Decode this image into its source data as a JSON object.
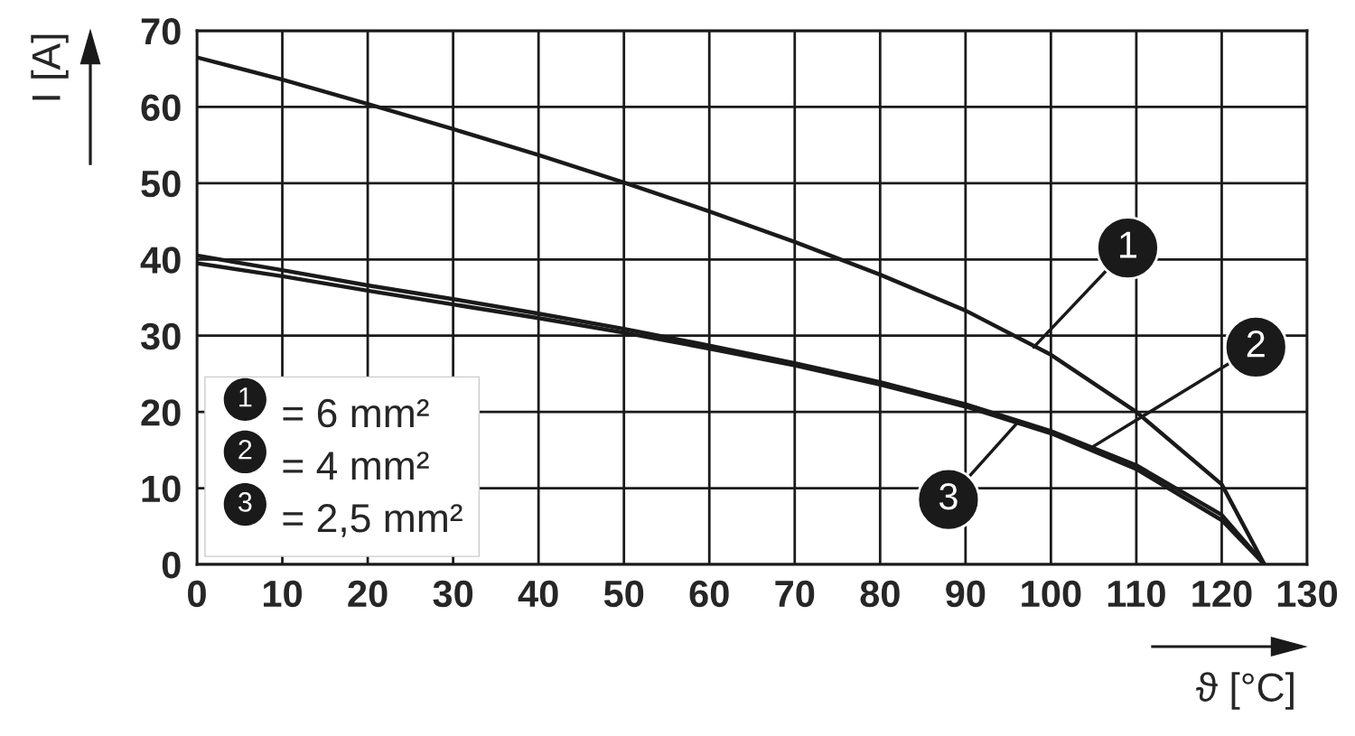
{
  "chart_data": {
    "type": "line",
    "xlabel": "ϑ [°C]",
    "ylabel": "I [A]",
    "x": [
      0,
      10,
      20,
      30,
      40,
      50,
      60,
      70,
      80,
      90,
      100,
      110,
      120,
      125
    ],
    "series": [
      {
        "name": "= 6 mm²",
        "color": "#1a1a1a",
        "values": [
          66.5,
          63.6,
          60.4,
          57.1,
          53.7,
          50.1,
          46.3,
          42.3,
          38.0,
          33.3,
          27.5,
          20.0,
          10.5,
          0
        ]
      },
      {
        "name": "= 4 mm²",
        "color": "#1a1a1a",
        "values": [
          40.5,
          38.6,
          36.6,
          34.8,
          32.9,
          30.9,
          28.7,
          26.4,
          23.9,
          21.0,
          17.5,
          13.0,
          6.5,
          0
        ]
      },
      {
        "name": "= 2,5 mm²",
        "color": "#1a1a1a",
        "values": [
          39.5,
          37.8,
          35.9,
          34.1,
          32.3,
          30.4,
          28.3,
          26.1,
          23.6,
          20.7,
          17.2,
          12.5,
          5.8,
          0
        ]
      }
    ],
    "annotations": [
      {
        "text": "1",
        "x": 98,
        "y": 28.5
      },
      {
        "text": "2",
        "x": 105,
        "y": 15.5
      },
      {
        "text": "3",
        "x": 96,
        "y": 18.5
      }
    ],
    "xlim": [
      0,
      130
    ],
    "ylim": [
      0,
      70
    ],
    "xticks": [
      0,
      10,
      20,
      30,
      40,
      50,
      60,
      70,
      80,
      90,
      100,
      110,
      120,
      130
    ],
    "yticks": [
      0,
      10,
      20,
      30,
      40,
      50,
      60,
      70
    ],
    "grid": true,
    "legend": "bottom left",
    "line_style": "solid",
    "marker": "none"
  }
}
